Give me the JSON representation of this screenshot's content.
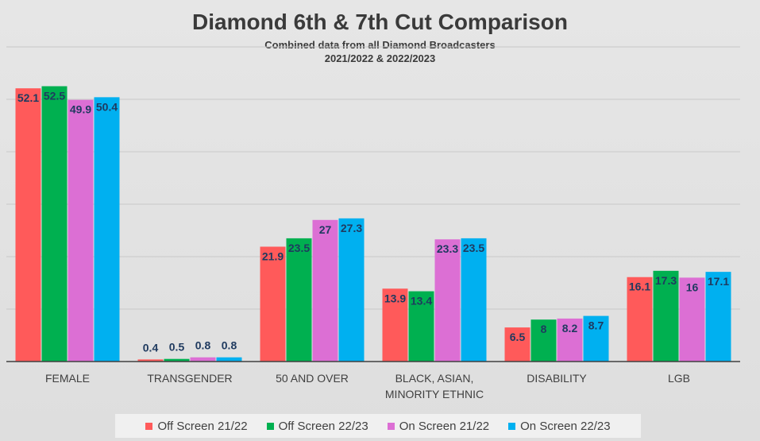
{
  "chart_data": {
    "type": "bar",
    "title": "Diamond 6th & 7th Cut Comparison",
    "subtitle_lines": [
      "Combined data from all Diamond Broadcasters",
      "2021/2022 & 2022/2023"
    ],
    "categories": [
      "FEMALE",
      "TRANSGENDER",
      "50 AND OVER",
      "BLACK, ASIAN, MINORITY ETHNIC",
      "DISABILITY",
      "LGB"
    ],
    "category_lines": [
      [
        "FEMALE"
      ],
      [
        "TRANSGENDER"
      ],
      [
        "50 AND OVER"
      ],
      [
        "BLACK, ASIAN,",
        "MINORITY ETHNIC"
      ],
      [
        "DISABILITY"
      ],
      [
        "LGB"
      ]
    ],
    "series": [
      {
        "name": "Off Screen 21/22",
        "color": "#ff5a5a",
        "values": [
          52.1,
          0.4,
          21.9,
          13.9,
          6.5,
          16.1
        ]
      },
      {
        "name": "Off Screen 22/23",
        "color": "#00b050",
        "values": [
          52.5,
          0.5,
          23.5,
          13.4,
          8,
          17.3
        ]
      },
      {
        "name": "On Screen 21/22",
        "color": "#dc6fd4",
        "values": [
          49.9,
          0.8,
          27,
          23.3,
          8.2,
          16
        ]
      },
      {
        "name": "On Screen 22/23",
        "color": "#00b0f0",
        "values": [
          50.4,
          0.8,
          27.3,
          23.5,
          8.7,
          17.1
        ]
      }
    ],
    "ylim": [
      0,
      60
    ],
    "grid": true,
    "legend_position": "bottom",
    "label_color": "#1f3a5f"
  }
}
